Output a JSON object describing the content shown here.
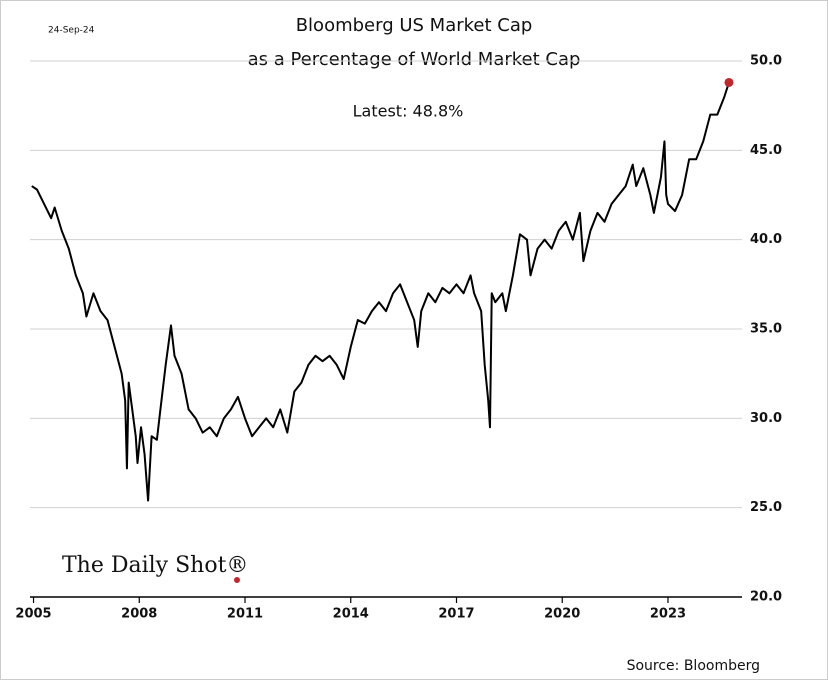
{
  "chart_data": {
    "type": "line",
    "title": [
      "Bloomberg US Market Cap",
      "as a Percentage of World Market Cap"
    ],
    "date": "24-Sep-24",
    "annotation": "Latest:  48.8%",
    "brand": "The Daily Shot®",
    "source": "Source: Bloomberg",
    "x": [
      2004.95,
      2005.1,
      2005.3,
      2005.5,
      2005.6,
      2005.8,
      2006.0,
      2006.2,
      2006.4,
      2006.5,
      2006.7,
      2006.9,
      2007.1,
      2007.3,
      2007.5,
      2007.6,
      2007.65,
      2007.7,
      2007.8,
      2007.9,
      2007.95,
      2008.05,
      2008.15,
      2008.25,
      2008.35,
      2008.5,
      2008.6,
      2008.75,
      2008.9,
      2009.0,
      2009.2,
      2009.4,
      2009.6,
      2009.8,
      2010.0,
      2010.2,
      2010.4,
      2010.6,
      2010.8,
      2011.0,
      2011.2,
      2011.4,
      2011.6,
      2011.8,
      2012.0,
      2012.2,
      2012.4,
      2012.6,
      2012.8,
      2013.0,
      2013.2,
      2013.4,
      2013.6,
      2013.8,
      2014.0,
      2014.2,
      2014.4,
      2014.6,
      2014.8,
      2015.0,
      2015.2,
      2015.4,
      2015.6,
      2015.8,
      2015.9,
      2016.0,
      2016.2,
      2016.4,
      2016.6,
      2016.8,
      2017.0,
      2017.2,
      2017.4,
      2017.5,
      2017.7,
      2017.8,
      2017.9,
      2017.95,
      2018.0,
      2018.1,
      2018.3,
      2018.4,
      2018.6,
      2018.8,
      2019.0,
      2019.1,
      2019.3,
      2019.5,
      2019.7,
      2019.9,
      2020.1,
      2020.3,
      2020.5,
      2020.6,
      2020.8,
      2021.0,
      2021.2,
      2021.4,
      2021.6,
      2021.8,
      2022.0,
      2022.1,
      2022.3,
      2022.5,
      2022.6,
      2022.8,
      2022.9,
      2022.95,
      2023.0,
      2023.2,
      2023.4,
      2023.6,
      2023.8,
      2024.0,
      2024.2,
      2024.4,
      2024.6,
      2024.73
    ],
    "series": [
      {
        "color": "#000000",
        "values": [
          43.0,
          42.8,
          42.0,
          41.2,
          41.8,
          40.5,
          39.5,
          38.0,
          37.0,
          35.7,
          37.0,
          36.0,
          35.5,
          34.0,
          32.5,
          31.0,
          27.2,
          32.0,
          30.5,
          29.0,
          27.5,
          29.5,
          28.0,
          25.4,
          29.0,
          28.8,
          30.5,
          33.0,
          35.2,
          33.5,
          32.5,
          30.5,
          30.0,
          29.2,
          29.5,
          29.0,
          30.0,
          30.5,
          31.2,
          30.0,
          29.0,
          29.5,
          30.0,
          29.5,
          30.5,
          29.2,
          31.5,
          32.0,
          33.0,
          33.5,
          33.2,
          33.5,
          33.0,
          32.2,
          34.0,
          35.5,
          35.3,
          36.0,
          36.5,
          36.0,
          37.0,
          37.5,
          36.5,
          35.5,
          34.0,
          36.0,
          37.0,
          36.5,
          37.3,
          37.0,
          37.5,
          37.0,
          38.0,
          37.0,
          36.0,
          33.0,
          31.0,
          29.5,
          37.0,
          36.5,
          37.0,
          36.0,
          38.0,
          40.3,
          40.0,
          38.0,
          39.5,
          40.0,
          39.5,
          40.5,
          41.0,
          40.0,
          41.5,
          38.8,
          40.5,
          41.5,
          41.0,
          42.0,
          42.5,
          43.0,
          44.2,
          43.0,
          44.0,
          42.5,
          41.5,
          43.5,
          45.5,
          42.5,
          42.0,
          41.6,
          42.5,
          44.5,
          44.5,
          45.5,
          47.0,
          47.0,
          48.0,
          48.8
        ]
      }
    ],
    "highlight_color": "#c0282d",
    "xlim": [
      2004.9,
      2025.1
    ],
    "xticks": [
      2005,
      2008,
      2011,
      2014,
      2017,
      2020,
      2023
    ],
    "ylim": [
      20,
      50
    ],
    "yticks": [
      {
        "value": 20,
        "label": "20.0"
      },
      {
        "value": 25,
        "label": "25.0"
      },
      {
        "value": 30,
        "label": "30.0"
      },
      {
        "value": 35,
        "label": "35.0"
      },
      {
        "value": 40,
        "label": "40.0"
      },
      {
        "value": 45,
        "label": "45.0"
      },
      {
        "value": 50,
        "label": "50.0"
      }
    ],
    "grid": true
  }
}
